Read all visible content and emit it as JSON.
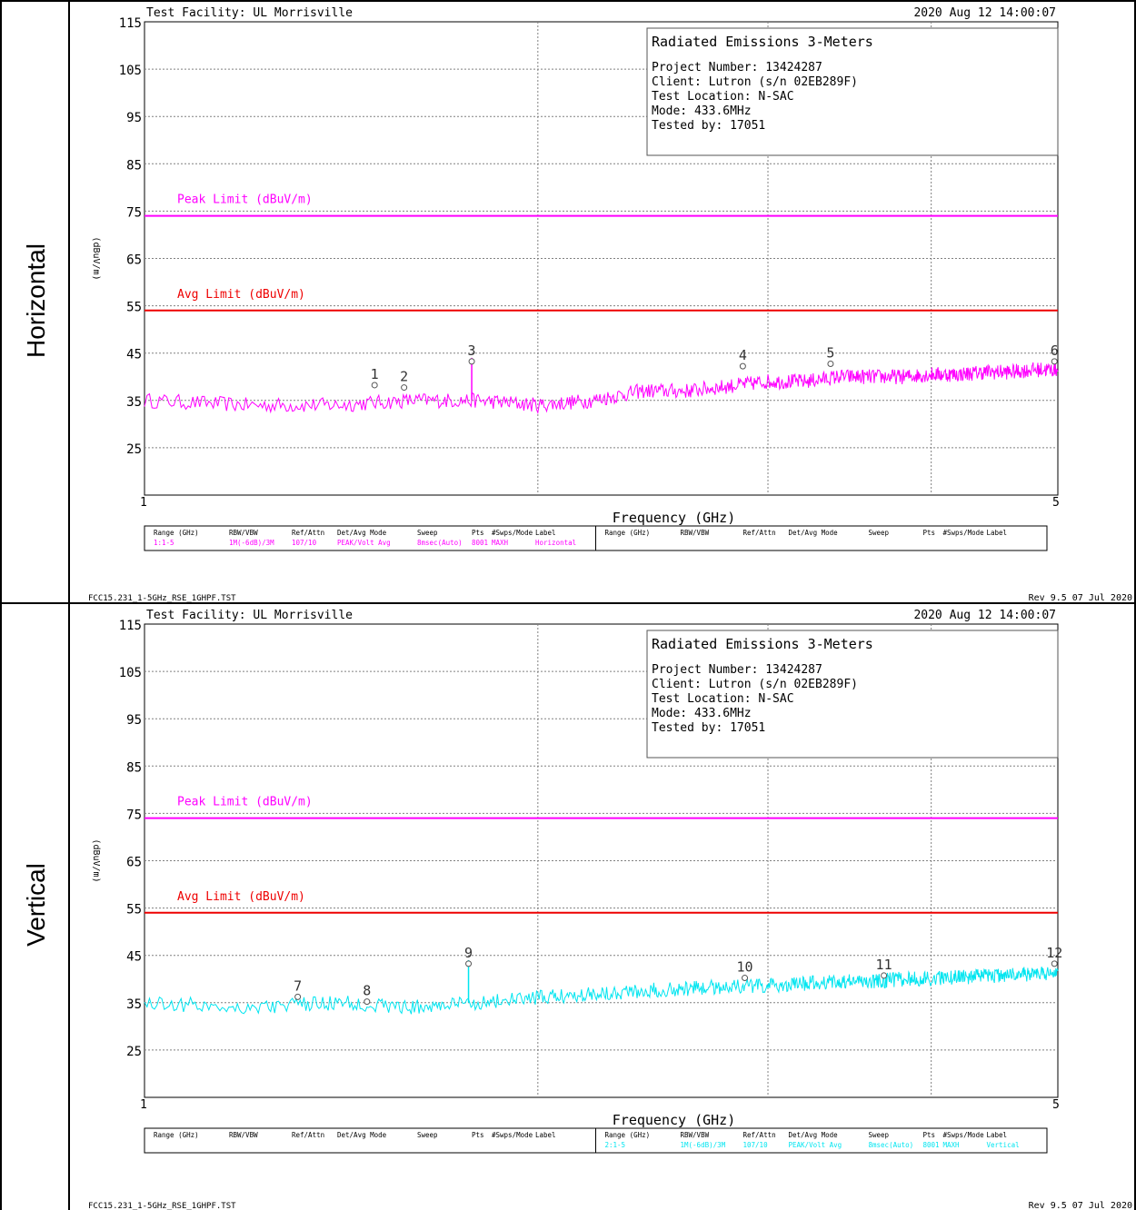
{
  "colors": {
    "peak_limit": "#ff00ff",
    "avg_limit": "#ee0000",
    "trace_horizontal": "#ff00ff",
    "trace_vertical": "#00e5f0",
    "grid": "#808080",
    "text": "#000000"
  },
  "panels": [
    {
      "side_label": "Horizontal",
      "facility": "Test Facility:  UL Morrisville",
      "datetime": "2020 Aug 12    14:00:07",
      "info": {
        "title": "Radiated Emissions 3-Meters",
        "lines": [
          "Project Number: 13424287",
          "Client: Lutron (s/n 02EB289F)",
          "Test Location: N-SAC",
          "Mode: 433.6MHz",
          "Tested by: 17051"
        ]
      },
      "limit_labels": {
        "peak": "Peak Limit (dBuV/m)",
        "avg": "Avg Limit (dBuV/m)"
      },
      "ylabel": "(dBuV/m)",
      "xlabel": "Frequency (GHz)",
      "x_start_label": "1",
      "x_end_label": "5",
      "footer_left": "FCC15.231_1-5GHz_RSE_1GHPF.TST",
      "footer_right": "Rev 9.5 07 Jul 2020",
      "table": {
        "headers": [
          "Range (GHz)",
          "RBW/VBW",
          "Ref/Attn",
          "Det/Avg Mode",
          "Sweep",
          "Pts",
          "#Swps/Mode",
          "Label"
        ],
        "row_left": [
          "1:1-5",
          "1M(-6dB)/3M",
          "107/10",
          "PEAK/Volt Avg",
          "8msec(Auto)",
          "8001",
          "MAXH",
          "Horizontal"
        ],
        "row_right": [
          "",
          "",
          "",
          "",
          "",
          "",
          "",
          ""
        ]
      }
    },
    {
      "side_label": "Vertical",
      "facility": "Test Facility:  UL Morrisville",
      "datetime": "2020 Aug 12    14:00:07",
      "info": {
        "title": "Radiated Emissions 3-Meters",
        "lines": [
          "Project Number: 13424287",
          "Client: Lutron (s/n 02EB289F)",
          "Test Location: N-SAC",
          "Mode: 433.6MHz",
          "Tested by: 17051"
        ]
      },
      "limit_labels": {
        "peak": "Peak Limit (dBuV/m)",
        "avg": "Avg Limit (dBuV/m)"
      },
      "ylabel": "(dBuV/m)",
      "xlabel": "Frequency (GHz)",
      "x_start_label": "1",
      "x_end_label": "5",
      "footer_left": "FCC15.231_1-5GHz_RSE_1GHPF.TST",
      "footer_right": "Rev 9.5 07 Jul 2020",
      "table": {
        "headers": [
          "Range (GHz)",
          "RBW/VBW",
          "Ref/Attn",
          "Det/Avg Mode",
          "Sweep",
          "Pts",
          "#Swps/Mode",
          "Label"
        ],
        "row_left": [
          "",
          "",
          "",
          "",
          "",
          "",
          "",
          ""
        ],
        "row_right": [
          "2:1-5",
          "1M(-6dB)/3M",
          "107/10",
          "PEAK/Volt Avg",
          "8msec(Auto)",
          "8001",
          "MAXH",
          "Vertical"
        ]
      }
    }
  ],
  "chart_data": [
    {
      "type": "line",
      "title": "Radiated Emissions 3-Meters",
      "xlabel": "Frequency (GHz)",
      "ylabel": "(dBuV/m)",
      "xlim": [
        1,
        5
      ],
      "ylim": [
        15,
        115
      ],
      "yticks": [
        115,
        105,
        95,
        85,
        75,
        65,
        55,
        45,
        35,
        25
      ],
      "grid": true,
      "series": [
        {
          "name": "Horizontal",
          "color": "#ff00ff",
          "x": [
            1.0,
            1.2,
            1.4,
            1.6,
            1.8,
            2.0,
            2.2,
            2.4,
            2.6,
            2.8,
            3.0,
            3.2,
            3.4,
            3.6,
            3.8,
            4.0,
            4.2,
            4.4,
            4.6,
            4.8,
            5.0
          ],
          "y": [
            35,
            34,
            34,
            35,
            35,
            34,
            35,
            37,
            37,
            38,
            39,
            39,
            40,
            40,
            40,
            40.5,
            40.5,
            41,
            41,
            41.5,
            41.5
          ]
        }
      ],
      "limits": [
        {
          "name": "Peak Limit (dBuV/m)",
          "y": 74,
          "color": "#ff00ff"
        },
        {
          "name": "Avg Limit (dBuV/m)",
          "y": 54,
          "color": "#ee0000"
        }
      ],
      "markers": [
        {
          "label": "1",
          "x": 1.5,
          "y": 39
        },
        {
          "label": "2",
          "x": 1.58,
          "y": 38.5
        },
        {
          "label": "3",
          "x": 1.78,
          "y": 44
        },
        {
          "label": "4",
          "x": 2.87,
          "y": 43
        },
        {
          "label": "5",
          "x": 3.35,
          "y": 43.5
        },
        {
          "label": "6",
          "x": 4.97,
          "y": 44
        }
      ]
    },
    {
      "type": "line",
      "title": "Radiated Emissions 3-Meters",
      "xlabel": "Frequency (GHz)",
      "ylabel": "(dBuV/m)",
      "xlim": [
        1,
        5
      ],
      "ylim": [
        15,
        115
      ],
      "yticks": [
        115,
        105,
        95,
        85,
        75,
        65,
        55,
        45,
        35,
        25
      ],
      "grid": true,
      "series": [
        {
          "name": "Vertical",
          "color": "#00e5f0",
          "x": [
            1.0,
            1.2,
            1.4,
            1.6,
            1.8,
            2.0,
            2.2,
            2.4,
            2.6,
            2.8,
            3.0,
            3.2,
            3.4,
            3.6,
            3.8,
            4.0,
            4.2,
            4.4,
            4.6,
            4.8,
            5.0
          ],
          "y": [
            35,
            34,
            35,
            34,
            35,
            36,
            37,
            37.5,
            38,
            38.5,
            38.5,
            39,
            39.5,
            39.5,
            40,
            40,
            40.5,
            40.5,
            41,
            41,
            41.5
          ]
        }
      ],
      "limits": [
        {
          "name": "Peak Limit (dBuV/m)",
          "y": 74,
          "color": "#ff00ff"
        },
        {
          "name": "Avg Limit (dBuV/m)",
          "y": 54,
          "color": "#ee0000"
        }
      ],
      "markers": [
        {
          "label": "7",
          "x": 1.31,
          "y": 37
        },
        {
          "label": "8",
          "x": 1.48,
          "y": 36
        },
        {
          "label": "9",
          "x": 1.77,
          "y": 44
        },
        {
          "label": "10",
          "x": 2.88,
          "y": 41
        },
        {
          "label": "11",
          "x": 3.68,
          "y": 41.5
        },
        {
          "label": "12",
          "x": 4.97,
          "y": 44
        }
      ]
    }
  ]
}
